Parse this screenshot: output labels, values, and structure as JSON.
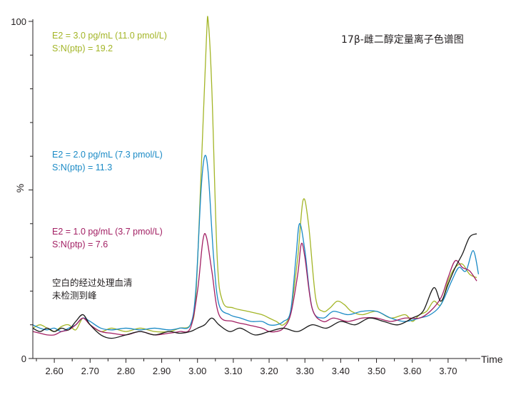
{
  "chart_data": {
    "type": "line",
    "title": "17β-雌二醇定量离子色谱图",
    "xlabel": "Time",
    "ylabel": "%",
    "xlim": [
      2.54,
      3.79
    ],
    "ylim": [
      0,
      100
    ],
    "x_ticks": [
      "2.60",
      "2.70",
      "2.80",
      "2.90",
      "3.00",
      "3.10",
      "3.20",
      "3.30",
      "3.40",
      "3.50",
      "3.60",
      "3.70"
    ],
    "y_ticks": [
      "0",
      "100"
    ],
    "grid": false,
    "series": [
      {
        "color": "#a3b526",
        "legend": [
          "E2 = 3.0 pg/mL (11.0 pmol/L)",
          "S:N(ptp) = 19.2"
        ],
        "points": [
          [
            2.54,
            9
          ],
          [
            2.56,
            10
          ],
          [
            2.58,
            9
          ],
          [
            2.6,
            8
          ],
          [
            2.62,
            9.5
          ],
          [
            2.64,
            10
          ],
          [
            2.66,
            8.5
          ],
          [
            2.68,
            12
          ],
          [
            2.7,
            10
          ],
          [
            2.73,
            8
          ],
          [
            2.76,
            9
          ],
          [
            2.8,
            8
          ],
          [
            2.84,
            9
          ],
          [
            2.88,
            8
          ],
          [
            2.92,
            8
          ],
          [
            2.95,
            9
          ],
          [
            2.98,
            10
          ],
          [
            2.995,
            18
          ],
          [
            3.01,
            55
          ],
          [
            3.025,
            95
          ],
          [
            3.03,
            100
          ],
          [
            3.04,
            80
          ],
          [
            3.055,
            30
          ],
          [
            3.07,
            17
          ],
          [
            3.1,
            15
          ],
          [
            3.14,
            14
          ],
          [
            3.18,
            13
          ],
          [
            3.2,
            12
          ],
          [
            3.22,
            11
          ],
          [
            3.24,
            10
          ],
          [
            3.26,
            14
          ],
          [
            3.28,
            30
          ],
          [
            3.295,
            47
          ],
          [
            3.31,
            40
          ],
          [
            3.33,
            18
          ],
          [
            3.35,
            14
          ],
          [
            3.37,
            15
          ],
          [
            3.39,
            17
          ],
          [
            3.41,
            16
          ],
          [
            3.43,
            14
          ],
          [
            3.46,
            13
          ],
          [
            3.5,
            14
          ],
          [
            3.54,
            12
          ],
          [
            3.58,
            13
          ],
          [
            3.6,
            11
          ],
          [
            3.62,
            13
          ],
          [
            3.64,
            14
          ],
          [
            3.66,
            17
          ],
          [
            3.68,
            16
          ],
          [
            3.7,
            23
          ],
          [
            3.72,
            27
          ],
          [
            3.74,
            28
          ],
          [
            3.76,
            25
          ],
          [
            3.78,
            24
          ]
        ]
      },
      {
        "color": "#1a8ac6",
        "legend": [
          "E2 = 2.0 pg/mL (7.3 pmol/L)",
          "S:N(ptp) = 11.3"
        ],
        "points": [
          [
            2.54,
            10
          ],
          [
            2.56,
            9
          ],
          [
            2.58,
            8.5
          ],
          [
            2.6,
            9
          ],
          [
            2.62,
            8
          ],
          [
            2.64,
            9
          ],
          [
            2.66,
            10
          ],
          [
            2.68,
            12
          ],
          [
            2.7,
            11
          ],
          [
            2.73,
            9
          ],
          [
            2.76,
            8.5
          ],
          [
            2.8,
            9
          ],
          [
            2.84,
            8.5
          ],
          [
            2.88,
            9
          ],
          [
            2.92,
            8.5
          ],
          [
            2.95,
            9
          ],
          [
            2.98,
            10
          ],
          [
            2.995,
            20
          ],
          [
            3.01,
            50
          ],
          [
            3.02,
            60
          ],
          [
            3.03,
            55
          ],
          [
            3.045,
            30
          ],
          [
            3.06,
            16
          ],
          [
            3.09,
            13
          ],
          [
            3.12,
            12
          ],
          [
            3.15,
            11
          ],
          [
            3.18,
            11
          ],
          [
            3.2,
            10
          ],
          [
            3.22,
            10
          ],
          [
            3.24,
            11
          ],
          [
            3.26,
            14
          ],
          [
            3.275,
            30
          ],
          [
            3.285,
            40
          ],
          [
            3.3,
            32
          ],
          [
            3.32,
            15
          ],
          [
            3.35,
            12
          ],
          [
            3.38,
            14
          ],
          [
            3.42,
            13
          ],
          [
            3.46,
            14
          ],
          [
            3.5,
            14
          ],
          [
            3.54,
            12
          ],
          [
            3.58,
            11
          ],
          [
            3.62,
            12
          ],
          [
            3.65,
            13
          ],
          [
            3.68,
            16
          ],
          [
            3.71,
            23
          ],
          [
            3.73,
            27
          ],
          [
            3.75,
            26
          ],
          [
            3.77,
            32
          ],
          [
            3.785,
            25
          ]
        ]
      },
      {
        "color": "#a21f63",
        "legend": [
          "E2 = 1.0 pg/mL (3.7 pmol/L)",
          "S:N(ptp) = 7.6"
        ],
        "points": [
          [
            2.54,
            8
          ],
          [
            2.56,
            7.5
          ],
          [
            2.58,
            7
          ],
          [
            2.6,
            7
          ],
          [
            2.62,
            8
          ],
          [
            2.64,
            8.5
          ],
          [
            2.66,
            10
          ],
          [
            2.68,
            12
          ],
          [
            2.7,
            10
          ],
          [
            2.73,
            8
          ],
          [
            2.76,
            7.5
          ],
          [
            2.8,
            7
          ],
          [
            2.84,
            8
          ],
          [
            2.88,
            7
          ],
          [
            2.92,
            7.5
          ],
          [
            2.95,
            8
          ],
          [
            2.98,
            9
          ],
          [
            3.0,
            20
          ],
          [
            3.015,
            35
          ],
          [
            3.025,
            36
          ],
          [
            3.04,
            26
          ],
          [
            3.06,
            13
          ],
          [
            3.1,
            11
          ],
          [
            3.14,
            10
          ],
          [
            3.18,
            9
          ],
          [
            3.2,
            8
          ],
          [
            3.22,
            8
          ],
          [
            3.24,
            9
          ],
          [
            3.26,
            13
          ],
          [
            3.28,
            25
          ],
          [
            3.29,
            34
          ],
          [
            3.3,
            30
          ],
          [
            3.32,
            15
          ],
          [
            3.35,
            11
          ],
          [
            3.38,
            12
          ],
          [
            3.42,
            11
          ],
          [
            3.46,
            12
          ],
          [
            3.5,
            12
          ],
          [
            3.54,
            11
          ],
          [
            3.58,
            12
          ],
          [
            3.62,
            12
          ],
          [
            3.65,
            14
          ],
          [
            3.68,
            18
          ],
          [
            3.7,
            24
          ],
          [
            3.72,
            29
          ],
          [
            3.74,
            27
          ],
          [
            3.76,
            26
          ],
          [
            3.78,
            23
          ]
        ]
      },
      {
        "color": "#1a1a1a",
        "legend": [
          "空白的经过处理血清",
          "未检测到峰"
        ],
        "points": [
          [
            2.54,
            9
          ],
          [
            2.56,
            8
          ],
          [
            2.58,
            9
          ],
          [
            2.6,
            8
          ],
          [
            2.62,
            9
          ],
          [
            2.64,
            8.5
          ],
          [
            2.66,
            11
          ],
          [
            2.68,
            13
          ],
          [
            2.7,
            10
          ],
          [
            2.73,
            7
          ],
          [
            2.76,
            6
          ],
          [
            2.8,
            7
          ],
          [
            2.84,
            8
          ],
          [
            2.88,
            7
          ],
          [
            2.92,
            8
          ],
          [
            2.95,
            7.5
          ],
          [
            2.98,
            8
          ],
          [
            3.0,
            9
          ],
          [
            3.02,
            10
          ],
          [
            3.04,
            12
          ],
          [
            3.06,
            10
          ],
          [
            3.09,
            8
          ],
          [
            3.12,
            9
          ],
          [
            3.16,
            7
          ],
          [
            3.2,
            8
          ],
          [
            3.24,
            9
          ],
          [
            3.28,
            8
          ],
          [
            3.32,
            10
          ],
          [
            3.36,
            9
          ],
          [
            3.4,
            11
          ],
          [
            3.44,
            10
          ],
          [
            3.48,
            12
          ],
          [
            3.52,
            11
          ],
          [
            3.56,
            10
          ],
          [
            3.6,
            12
          ],
          [
            3.63,
            14
          ],
          [
            3.66,
            21
          ],
          [
            3.68,
            17
          ],
          [
            3.7,
            22
          ],
          [
            3.72,
            27
          ],
          [
            3.74,
            31
          ],
          [
            3.76,
            36
          ],
          [
            3.78,
            37
          ]
        ]
      }
    ]
  }
}
